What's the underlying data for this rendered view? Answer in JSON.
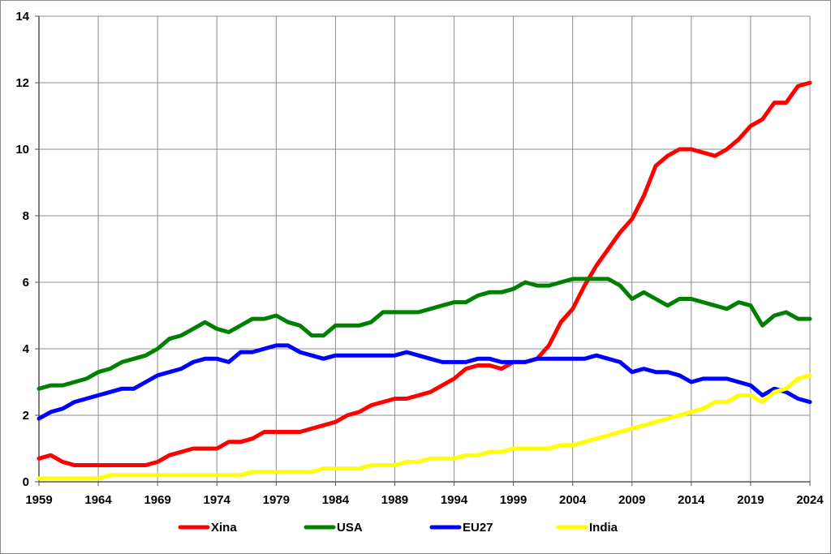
{
  "chart_data": {
    "type": "line",
    "title": "",
    "xlabel": "",
    "ylabel": "",
    "ylim": [
      0,
      14
    ],
    "y_ticks": [
      "0",
      "2",
      "4",
      "6",
      "8",
      "10",
      "12",
      "14"
    ],
    "xlim": [
      1959,
      2024
    ],
    "x_ticks": [
      "1959",
      "1964",
      "1969",
      "1974",
      "1979",
      "1984",
      "1989",
      "1994",
      "1999",
      "2004",
      "2009",
      "2014",
      "2019",
      "2024"
    ],
    "grid": true,
    "legend_position": "bottom",
    "series": [
      {
        "name": "Xina",
        "color": "#ff0000",
        "values": [
          0.7,
          0.8,
          0.6,
          0.5,
          0.5,
          0.5,
          0.5,
          0.5,
          0.5,
          0.5,
          0.6,
          0.8,
          0.9,
          1.0,
          1.0,
          1.0,
          1.2,
          1.2,
          1.3,
          1.5,
          1.5,
          1.5,
          1.5,
          1.6,
          1.7,
          1.8,
          2.0,
          2.1,
          2.3,
          2.4,
          2.5,
          2.5,
          2.6,
          2.7,
          2.9,
          3.1,
          3.4,
          3.5,
          3.5,
          3.4,
          3.6,
          3.6,
          3.7,
          4.1,
          4.8,
          5.2,
          5.9,
          6.5,
          7.0,
          7.5,
          7.9,
          8.6,
          9.5,
          9.8,
          10.0,
          10.0,
          9.9,
          9.8,
          10.0,
          10.3,
          10.7,
          10.9,
          11.4,
          11.4,
          11.9,
          12.0
        ]
      },
      {
        "name": "USA",
        "color": "#008000",
        "values": [
          2.8,
          2.9,
          2.9,
          3.0,
          3.1,
          3.3,
          3.4,
          3.6,
          3.7,
          3.8,
          4.0,
          4.3,
          4.4,
          4.6,
          4.8,
          4.6,
          4.5,
          4.7,
          4.9,
          4.9,
          5.0,
          4.8,
          4.7,
          4.4,
          4.4,
          4.7,
          4.7,
          4.7,
          4.8,
          5.1,
          5.1,
          5.1,
          5.1,
          5.2,
          5.3,
          5.4,
          5.4,
          5.6,
          5.7,
          5.7,
          5.8,
          6.0,
          5.9,
          5.9,
          6.0,
          6.1,
          6.1,
          6.1,
          6.1,
          5.9,
          5.5,
          5.7,
          5.5,
          5.3,
          5.5,
          5.5,
          5.4,
          5.3,
          5.2,
          5.4,
          5.3,
          4.7,
          5.0,
          5.1,
          4.9,
          4.9
        ]
      },
      {
        "name": "EU27",
        "color": "#0000ff",
        "values": [
          1.9,
          2.1,
          2.2,
          2.4,
          2.5,
          2.6,
          2.7,
          2.8,
          2.8,
          3.0,
          3.2,
          3.3,
          3.4,
          3.6,
          3.7,
          3.7,
          3.6,
          3.9,
          3.9,
          4.0,
          4.1,
          4.1,
          3.9,
          3.8,
          3.7,
          3.8,
          3.8,
          3.8,
          3.8,
          3.8,
          3.8,
          3.9,
          3.8,
          3.7,
          3.6,
          3.6,
          3.6,
          3.7,
          3.7,
          3.6,
          3.6,
          3.6,
          3.7,
          3.7,
          3.7,
          3.7,
          3.7,
          3.8,
          3.7,
          3.6,
          3.3,
          3.4,
          3.3,
          3.3,
          3.2,
          3.0,
          3.1,
          3.1,
          3.1,
          3.0,
          2.9,
          2.6,
          2.8,
          2.7,
          2.5,
          2.4
        ]
      },
      {
        "name": "India",
        "color": "#ffff00",
        "values": [
          0.1,
          0.1,
          0.1,
          0.1,
          0.1,
          0.1,
          0.2,
          0.2,
          0.2,
          0.2,
          0.2,
          0.2,
          0.2,
          0.2,
          0.2,
          0.2,
          0.2,
          0.2,
          0.3,
          0.3,
          0.3,
          0.3,
          0.3,
          0.3,
          0.4,
          0.4,
          0.4,
          0.4,
          0.5,
          0.5,
          0.5,
          0.6,
          0.6,
          0.7,
          0.7,
          0.7,
          0.8,
          0.8,
          0.9,
          0.9,
          1.0,
          1.0,
          1.0,
          1.0,
          1.1,
          1.1,
          1.2,
          1.3,
          1.4,
          1.5,
          1.6,
          1.7,
          1.8,
          1.9,
          2.0,
          2.1,
          2.2,
          2.4,
          2.4,
          2.6,
          2.6,
          2.4,
          2.7,
          2.8,
          3.1,
          3.2
        ]
      }
    ]
  }
}
